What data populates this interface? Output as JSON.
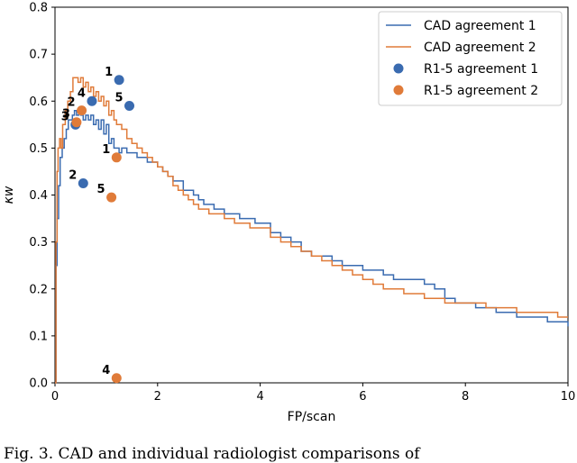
{
  "chart_data": {
    "type": "line",
    "title": "",
    "xlabel": "FP/scan",
    "ylabel": "κw",
    "xlim": [
      0,
      10
    ],
    "ylim": [
      0,
      0.8
    ],
    "xticks": [
      0,
      2,
      4,
      6,
      8,
      10
    ],
    "yticks": [
      0.0,
      0.1,
      0.2,
      0.3,
      0.4,
      0.5,
      0.6,
      0.7,
      0.8
    ],
    "legend_position": "top-right",
    "series": [
      {
        "name": "CAD agreement 1",
        "kind": "line",
        "color": "#3a6bb0",
        "x": [
          0,
          0.02,
          0.04,
          0.07,
          0.1,
          0.14,
          0.18,
          0.22,
          0.26,
          0.3,
          0.34,
          0.38,
          0.42,
          0.46,
          0.5,
          0.55,
          0.6,
          0.65,
          0.7,
          0.75,
          0.8,
          0.85,
          0.9,
          0.95,
          1.0,
          1.05,
          1.1,
          1.15,
          1.2,
          1.25,
          1.3,
          1.4,
          1.5,
          1.6,
          1.7,
          1.8,
          1.9,
          2.0,
          2.1,
          2.2,
          2.3,
          2.4,
          2.5,
          2.6,
          2.7,
          2.8,
          2.9,
          3.0,
          3.1,
          3.2,
          3.3,
          3.4,
          3.5,
          3.6,
          3.7,
          3.8,
          3.9,
          4.0,
          4.2,
          4.4,
          4.6,
          4.8,
          5.0,
          5.2,
          5.4,
          5.6,
          5.8,
          6.0,
          6.2,
          6.4,
          6.6,
          6.8,
          7.0,
          7.2,
          7.4,
          7.6,
          7.8,
          8.0,
          8.2,
          8.4,
          8.6,
          8.8,
          9.0,
          9.2,
          9.4,
          9.6,
          9.8,
          10.0
        ],
        "y": [
          0.0,
          0.25,
          0.35,
          0.42,
          0.48,
          0.5,
          0.52,
          0.54,
          0.56,
          0.56,
          0.57,
          0.58,
          0.57,
          0.58,
          0.57,
          0.56,
          0.57,
          0.56,
          0.57,
          0.55,
          0.56,
          0.54,
          0.56,
          0.53,
          0.55,
          0.51,
          0.52,
          0.5,
          0.5,
          0.49,
          0.5,
          0.49,
          0.49,
          0.48,
          0.48,
          0.47,
          0.47,
          0.46,
          0.45,
          0.44,
          0.43,
          0.43,
          0.41,
          0.41,
          0.4,
          0.39,
          0.38,
          0.38,
          0.37,
          0.37,
          0.36,
          0.36,
          0.36,
          0.35,
          0.35,
          0.35,
          0.34,
          0.34,
          0.32,
          0.31,
          0.3,
          0.28,
          0.27,
          0.27,
          0.26,
          0.25,
          0.25,
          0.24,
          0.24,
          0.23,
          0.22,
          0.22,
          0.22,
          0.21,
          0.2,
          0.18,
          0.17,
          0.17,
          0.16,
          0.16,
          0.15,
          0.15,
          0.14,
          0.14,
          0.14,
          0.13,
          0.13,
          0.12
        ]
      },
      {
        "name": "CAD agreement 2",
        "kind": "line",
        "color": "#e07b39",
        "x": [
          0,
          0.02,
          0.04,
          0.06,
          0.09,
          0.12,
          0.15,
          0.2,
          0.25,
          0.3,
          0.35,
          0.4,
          0.45,
          0.5,
          0.55,
          0.6,
          0.65,
          0.7,
          0.75,
          0.8,
          0.85,
          0.9,
          0.95,
          1.0,
          1.05,
          1.1,
          1.15,
          1.2,
          1.3,
          1.4,
          1.5,
          1.6,
          1.7,
          1.8,
          1.9,
          2.0,
          2.1,
          2.2,
          2.3,
          2.4,
          2.5,
          2.6,
          2.7,
          2.8,
          2.9,
          3.0,
          3.1,
          3.2,
          3.3,
          3.4,
          3.5,
          3.6,
          3.7,
          3.8,
          3.9,
          4.0,
          4.2,
          4.4,
          4.6,
          4.8,
          5.0,
          5.2,
          5.4,
          5.6,
          5.8,
          6.0,
          6.2,
          6.4,
          6.6,
          6.8,
          7.0,
          7.2,
          7.4,
          7.6,
          7.8,
          8.0,
          8.2,
          8.4,
          8.6,
          8.8,
          9.0,
          9.2,
          9.4,
          9.6,
          9.8,
          10.0
        ],
        "y": [
          0.0,
          0.3,
          0.45,
          0.5,
          0.52,
          0.5,
          0.55,
          0.58,
          0.6,
          0.62,
          0.65,
          0.65,
          0.64,
          0.65,
          0.63,
          0.64,
          0.62,
          0.63,
          0.61,
          0.62,
          0.6,
          0.61,
          0.59,
          0.6,
          0.57,
          0.58,
          0.56,
          0.55,
          0.54,
          0.52,
          0.51,
          0.5,
          0.49,
          0.48,
          0.47,
          0.46,
          0.45,
          0.44,
          0.42,
          0.41,
          0.4,
          0.39,
          0.38,
          0.37,
          0.37,
          0.36,
          0.36,
          0.36,
          0.35,
          0.35,
          0.34,
          0.34,
          0.34,
          0.33,
          0.33,
          0.33,
          0.31,
          0.3,
          0.29,
          0.28,
          0.27,
          0.26,
          0.25,
          0.24,
          0.23,
          0.22,
          0.21,
          0.2,
          0.2,
          0.19,
          0.19,
          0.18,
          0.18,
          0.17,
          0.17,
          0.17,
          0.17,
          0.16,
          0.16,
          0.16,
          0.15,
          0.15,
          0.15,
          0.15,
          0.14,
          0.14
        ]
      },
      {
        "name": "R1-5 agreement 1",
        "kind": "scatter",
        "color": "#3a6bb0",
        "points": [
          {
            "label": "1",
            "x": 1.25,
            "y": 0.645
          },
          {
            "label": "2",
            "x": 0.55,
            "y": 0.425
          },
          {
            "label": "3",
            "x": 0.4,
            "y": 0.55
          },
          {
            "label": "4",
            "x": 0.72,
            "y": 0.6
          },
          {
            "label": "5",
            "x": 1.45,
            "y": 0.59
          }
        ]
      },
      {
        "name": "R1-5 agreement 2",
        "kind": "scatter",
        "color": "#e07b39",
        "points": [
          {
            "label": "1",
            "x": 1.2,
            "y": 0.48
          },
          {
            "label": "2",
            "x": 0.52,
            "y": 0.58
          },
          {
            "label": "3",
            "x": 0.42,
            "y": 0.555
          },
          {
            "label": "4",
            "x": 1.2,
            "y": 0.01
          },
          {
            "label": "5",
            "x": 1.1,
            "y": 0.395
          }
        ]
      }
    ]
  },
  "caption": "Fig. 3.  CAD and individual radiologist comparisons of"
}
